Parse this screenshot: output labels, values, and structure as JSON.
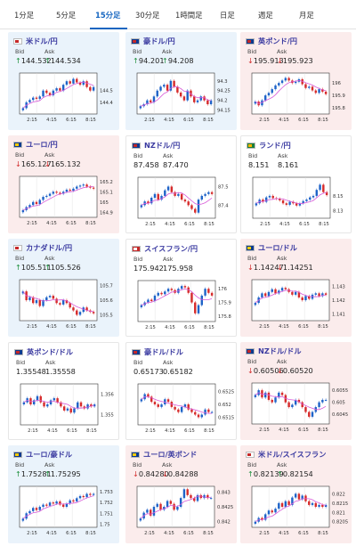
{
  "tabs": [
    {
      "label": "1分足",
      "active": false
    },
    {
      "label": "5分足",
      "active": false
    },
    {
      "label": "15分足",
      "active": true
    },
    {
      "label": "30分足",
      "active": false
    },
    {
      "label": "1時間足",
      "active": false
    },
    {
      "label": "日足",
      "active": false
    },
    {
      "label": "週足",
      "active": false
    },
    {
      "label": "月足",
      "active": false
    }
  ],
  "labels": {
    "bid": "Bid",
    "ask": "Ask"
  },
  "x_ticks": [
    "2:15",
    "4:15",
    "6:15",
    "8:15"
  ],
  "colors": {
    "up_bg": "#eaf3fb",
    "down_bg": "#fbecec",
    "candle_up": "#1e63c8",
    "candle_down": "#d62b2b",
    "ma": "#d85ad8",
    "up_arrow": "#1c8f3c",
    "down_arrow": "#d32f2f",
    "active_tab": "#1565c0"
  },
  "cards": [
    {
      "pair": "米ドル/円",
      "trend": "up",
      "direction": "up",
      "bid": "144.532",
      "ask": "144.534",
      "flag": "us",
      "chart_data": {
        "type": "candlestick",
        "y_ticks": [
          "144.5",
          "144.4"
        ],
        "ylim": [
          144.3,
          144.65
        ],
        "closes": [
          144.35,
          144.4,
          144.42,
          144.44,
          144.43,
          144.45,
          144.5,
          144.48,
          144.46,
          144.5,
          144.52,
          144.5,
          144.55,
          144.58,
          144.56,
          144.6,
          144.57,
          144.55,
          144.58,
          144.53,
          144.5,
          144.53
        ]
      }
    },
    {
      "pair": "豪ドル/円",
      "trend": "up",
      "direction": "up",
      "bid": "94.201",
      "ask": "94.208",
      "flag": "au",
      "chart_data": {
        "type": "candlestick",
        "y_ticks": [
          "94.3",
          "94.25",
          "94.2",
          "94.15"
        ],
        "ylim": [
          94.13,
          94.34
        ],
        "closes": [
          94.17,
          94.18,
          94.2,
          94.19,
          94.22,
          94.25,
          94.27,
          94.28,
          94.25,
          94.3,
          94.27,
          94.24,
          94.22,
          94.2,
          94.25,
          94.22,
          94.19,
          94.2,
          94.22,
          94.2,
          94.18,
          94.2
        ]
      }
    },
    {
      "pair": "英ポンド/円",
      "trend": "down",
      "direction": "down",
      "bid": "195.913",
      "ask": "195.923",
      "flag": "gb",
      "chart_data": {
        "type": "candlestick",
        "y_ticks": [
          "196",
          "195.9",
          "195.8"
        ],
        "ylim": [
          195.75,
          196.08
        ],
        "closes": [
          195.85,
          195.82,
          195.86,
          195.9,
          195.92,
          195.95,
          195.98,
          196.0,
          196.02,
          196.04,
          196.02,
          196.0,
          196.01,
          196.03,
          195.99,
          195.96,
          195.97,
          195.94,
          195.92,
          195.95,
          195.93,
          195.91
        ]
      }
    },
    {
      "pair": "ユーロ/円",
      "trend": "down",
      "direction": "down",
      "bid": "165.127",
      "ask": "165.132",
      "flag": "eu",
      "chart_data": {
        "type": "candlestick",
        "y_ticks": [
          "165.2",
          "165.1",
          "165",
          "164.9"
        ],
        "ylim": [
          164.85,
          165.25
        ],
        "closes": [
          164.92,
          164.95,
          164.97,
          165.0,
          164.98,
          165.02,
          165.05,
          165.06,
          165.08,
          165.1,
          165.09,
          165.08,
          165.1,
          165.12,
          165.11,
          165.13,
          165.15,
          165.16,
          165.17,
          165.15,
          165.14,
          165.13
        ]
      }
    },
    {
      "pair": "NZドル/円",
      "trend": "neutral",
      "direction": "none",
      "bid": "87.458",
      "ask": "87.470",
      "flag": "nz",
      "chart_data": {
        "type": "candlestick",
        "y_ticks": [
          "87.5",
          "87.4"
        ],
        "ylim": [
          87.33,
          87.55
        ],
        "closes": [
          87.4,
          87.42,
          87.41,
          87.44,
          87.46,
          87.43,
          87.45,
          87.48,
          87.5,
          87.47,
          87.45,
          87.46,
          87.43,
          87.42,
          87.4,
          87.38,
          87.36,
          87.43,
          87.45,
          87.46,
          87.47,
          87.46
        ]
      }
    },
    {
      "pair": "ランド/円",
      "trend": "neutral",
      "direction": "none",
      "bid": "8.151",
      "ask": "8.161",
      "flag": "za",
      "chart_data": {
        "type": "candlestick",
        "y_ticks": [
          "8.15",
          "8.13"
        ],
        "ylim": [
          8.12,
          8.175
        ],
        "closes": [
          8.14,
          8.145,
          8.142,
          8.148,
          8.15,
          8.147,
          8.146,
          8.144,
          8.14,
          8.138,
          8.142,
          8.14,
          8.137,
          8.14,
          8.143,
          8.145,
          8.148,
          8.15,
          8.158,
          8.165,
          8.155,
          8.151
        ]
      }
    },
    {
      "pair": "カナダドル/円",
      "trend": "up",
      "direction": "up",
      "bid": "105.511",
      "ask": "105.526",
      "flag": "ca",
      "chart_data": {
        "type": "candlestick",
        "y_ticks": [
          "105.7",
          "105.6",
          "105.5"
        ],
        "ylim": [
          105.46,
          105.74
        ],
        "closes": [
          105.66,
          105.6,
          105.62,
          105.58,
          105.6,
          105.56,
          105.6,
          105.62,
          105.63,
          105.61,
          105.58,
          105.57,
          105.6,
          105.58,
          105.55,
          105.53,
          105.5,
          105.52,
          105.55,
          105.53,
          105.52,
          105.51
        ]
      }
    },
    {
      "pair": "スイスフラン/円",
      "trend": "neutral",
      "direction": "none",
      "bid": "175.942",
      "ask": "175.958",
      "flag": "ch",
      "chart_data": {
        "type": "candlestick",
        "y_ticks": [
          "176",
          "175.9",
          "175.8"
        ],
        "ylim": [
          175.76,
          176.06
        ],
        "closes": [
          175.88,
          175.9,
          175.92,
          175.91,
          175.95,
          175.97,
          175.96,
          175.98,
          176.0,
          175.99,
          175.97,
          176.0,
          176.02,
          176.01,
          175.97,
          175.9,
          175.82,
          175.88,
          175.95,
          176.0,
          175.97,
          175.95
        ]
      }
    },
    {
      "pair": "ユーロ/ドル",
      "trend": "down",
      "direction": "down",
      "bid": "1.14247",
      "ask": "1.14251",
      "flag": "eu",
      "chart_data": {
        "type": "candlestick",
        "y_ticks": [
          "1.143",
          "1.142",
          "1.141"
        ],
        "ylim": [
          1.1405,
          1.1435
        ],
        "closes": [
          1.1418,
          1.1422,
          1.1425,
          1.1423,
          1.1426,
          1.1428,
          1.1425,
          1.1427,
          1.1429,
          1.1428,
          1.1426,
          1.1424,
          1.1426,
          1.1422,
          1.142,
          1.1423,
          1.1421,
          1.1424,
          1.1425,
          1.1423,
          1.1425,
          1.1424
        ]
      }
    },
    {
      "pair": "英ポンド/ドル",
      "trend": "neutral",
      "direction": "none",
      "bid": "1.35548",
      "ask": "1.35558",
      "flag": "gb",
      "chart_data": {
        "type": "candlestick",
        "y_ticks": [
          "1.356",
          "1.355"
        ],
        "ylim": [
          1.3545,
          1.3565
        ],
        "closes": [
          1.3556,
          1.3558,
          1.3555,
          1.3557,
          1.3559,
          1.3556,
          1.3554,
          1.3555,
          1.3557,
          1.3558,
          1.3556,
          1.3554,
          1.3552,
          1.3553,
          1.3551,
          1.3553,
          1.3556,
          1.3554,
          1.3553,
          1.3555,
          1.3554,
          1.3555
        ]
      }
    },
    {
      "pair": "豪ドル/ドル",
      "trend": "neutral",
      "direction": "none",
      "bid": "0.65173",
      "ask": "0.65182",
      "flag": "au",
      "chart_data": {
        "type": "candlestick",
        "y_ticks": [
          "0.6525",
          "0.652",
          "0.6515"
        ],
        "ylim": [
          0.6512,
          0.6528
        ],
        "closes": [
          0.6522,
          0.6524,
          0.6523,
          0.6521,
          0.652,
          0.6519,
          0.652,
          0.6522,
          0.6521,
          0.6519,
          0.6518,
          0.6517,
          0.6519,
          0.652,
          0.6518,
          0.6517,
          0.6516,
          0.6515,
          0.6516,
          0.6518,
          0.6517,
          0.6517
        ]
      }
    },
    {
      "pair": "NZドル/ドル",
      "trend": "down",
      "direction": "down",
      "bid": "0.60506",
      "ask": "0.60520",
      "flag": "nz",
      "chart_data": {
        "type": "candlestick",
        "y_ticks": [
          "0.6055",
          "0.605",
          "0.6045"
        ],
        "ylim": [
          0.6041,
          0.6058
        ],
        "closes": [
          0.6053,
          0.6055,
          0.6052,
          0.6054,
          0.6051,
          0.605,
          0.6052,
          0.6054,
          0.6053,
          0.605,
          0.6048,
          0.6049,
          0.6051,
          0.605,
          0.6048,
          0.6046,
          0.6044,
          0.6046,
          0.6048,
          0.605,
          0.6051,
          0.6051
        ]
      }
    },
    {
      "pair": "ユーロ/豪ドル",
      "trend": "up",
      "direction": "up",
      "bid": "1.75281",
      "ask": "1.75295",
      "flag": "eu",
      "chart_data": {
        "type": "candlestick",
        "y_ticks": [
          "1.753",
          "1.752",
          "1.751",
          "1.75"
        ],
        "ylim": [
          1.7497,
          1.7535
        ],
        "closes": [
          1.7505,
          1.751,
          1.7512,
          1.7515,
          1.7513,
          1.7516,
          1.7518,
          1.7517,
          1.752,
          1.7519,
          1.7521,
          1.7518,
          1.7516,
          1.7519,
          1.7522,
          1.7521,
          1.7524,
          1.7526,
          1.7525,
          1.7528,
          1.7527,
          1.7528
        ]
      }
    },
    {
      "pair": "ユーロ/英ポンド",
      "trend": "down",
      "direction": "down",
      "bid": "0.84280",
      "ask": "0.84288",
      "flag": "eu",
      "chart_data": {
        "type": "candlestick",
        "y_ticks": [
          "0.843",
          "0.8425",
          "0.842"
        ],
        "ylim": [
          0.8418,
          0.8432
        ],
        "closes": [
          0.8421,
          0.8423,
          0.8424,
          0.8422,
          0.8425,
          0.8426,
          0.8424,
          0.8425,
          0.8427,
          0.8426,
          0.8424,
          0.8425,
          0.8428,
          0.8431,
          0.8429,
          0.8428,
          0.8427,
          0.8429,
          0.8428,
          0.8429,
          0.8428,
          0.8428
        ]
      }
    },
    {
      "pair": "米ドル/スイスフラン",
      "trend": "down",
      "direction": "up",
      "bid": "0.82139",
      "ask": "0.82154",
      "flag": "us",
      "chart_data": {
        "type": "candlestick",
        "y_ticks": [
          "0.822",
          "0.8215",
          "0.821",
          "0.8205"
        ],
        "ylim": [
          0.8202,
          0.8224
        ],
        "closes": [
          0.8205,
          0.8207,
          0.8206,
          0.8209,
          0.8211,
          0.821,
          0.8212,
          0.8215,
          0.8213,
          0.8216,
          0.8214,
          0.8218,
          0.822,
          0.8217,
          0.8219,
          0.8216,
          0.8214,
          0.8215,
          0.8213,
          0.8214,
          0.8213,
          0.8214
        ]
      }
    }
  ]
}
